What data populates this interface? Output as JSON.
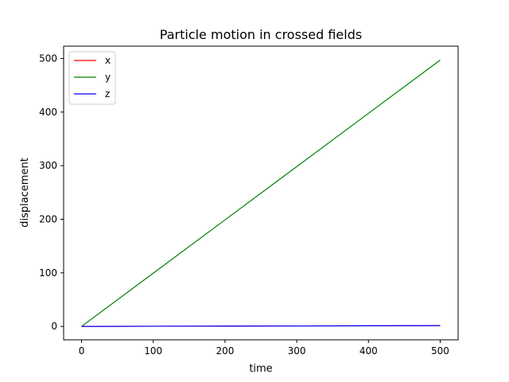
{
  "chart_data": {
    "type": "line",
    "title": "Particle motion in crossed fields",
    "xlabel": "time",
    "ylabel": "displacement",
    "xlim": [
      -25,
      525
    ],
    "ylim": [
      -25,
      523
    ],
    "xticks": [
      0,
      100,
      200,
      300,
      400,
      500
    ],
    "yticks": [
      0,
      100,
      200,
      300,
      400,
      500
    ],
    "grid": false,
    "legend_position": "top-left",
    "series": [
      {
        "name": "x",
        "color": "#ff0000",
        "x": [
          0,
          100,
          200,
          300,
          400,
          500
        ],
        "y": [
          0,
          0.3,
          0.6,
          0.9,
          1.2,
          1.5
        ]
      },
      {
        "name": "y",
        "color": "#008000",
        "x": [
          0,
          100,
          200,
          300,
          400,
          500
        ],
        "y": [
          0,
          99.4,
          198.8,
          298.2,
          397.6,
          497
        ]
      },
      {
        "name": "z",
        "color": "#0000ff",
        "x": [
          0,
          100,
          200,
          300,
          400,
          500
        ],
        "y": [
          0,
          0.3,
          0.6,
          0.9,
          1.2,
          1.5
        ]
      }
    ]
  }
}
